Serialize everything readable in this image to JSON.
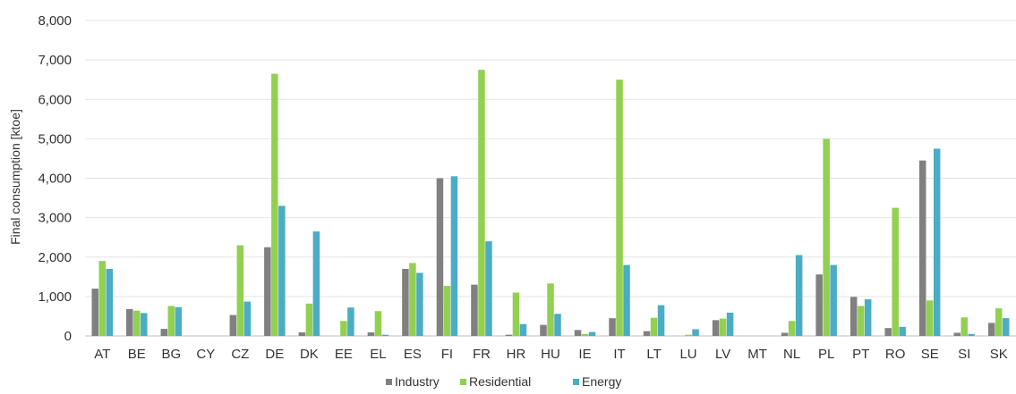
{
  "chart_data": {
    "type": "bar",
    "ylabel": "Final consumption [ktoe]",
    "ylim": [
      0,
      8000
    ],
    "yticks": [
      "0",
      "1,000",
      "2,000",
      "3,000",
      "4,000",
      "5,000",
      "6,000",
      "7,000",
      "8,000"
    ],
    "categories": [
      "AT",
      "BE",
      "BG",
      "CY",
      "CZ",
      "DE",
      "DK",
      "EE",
      "EL",
      "ES",
      "FI",
      "FR",
      "HR",
      "HU",
      "IE",
      "IT",
      "LT",
      "LU",
      "LV",
      "MT",
      "NL",
      "PL",
      "PT",
      "RO",
      "SE",
      "SI",
      "SK"
    ],
    "series": [
      {
        "name": "Industry",
        "color": "#808080",
        "values": [
          1200,
          680,
          180,
          0,
          530,
          2250,
          90,
          0,
          90,
          1700,
          4000,
          1300,
          30,
          280,
          150,
          450,
          120,
          0,
          400,
          0,
          80,
          1560,
          990,
          200,
          4450,
          80,
          330
        ]
      },
      {
        "name": "Residential",
        "color": "#92d050",
        "values": [
          1900,
          640,
          760,
          0,
          2300,
          6650,
          820,
          380,
          630,
          1850,
          1270,
          6750,
          1100,
          1330,
          50,
          6500,
          460,
          30,
          440,
          0,
          380,
          5000,
          760,
          3250,
          900,
          470,
          700
        ]
      },
      {
        "name": "Energy",
        "color": "#4bacc6",
        "values": [
          1700,
          580,
          730,
          0,
          870,
          3300,
          2650,
          720,
          30,
          1600,
          4050,
          2400,
          300,
          560,
          100,
          1800,
          780,
          170,
          590,
          0,
          2050,
          1800,
          930,
          230,
          4750,
          50,
          450
        ]
      }
    ],
    "legend": "bottom",
    "grid": true
  }
}
